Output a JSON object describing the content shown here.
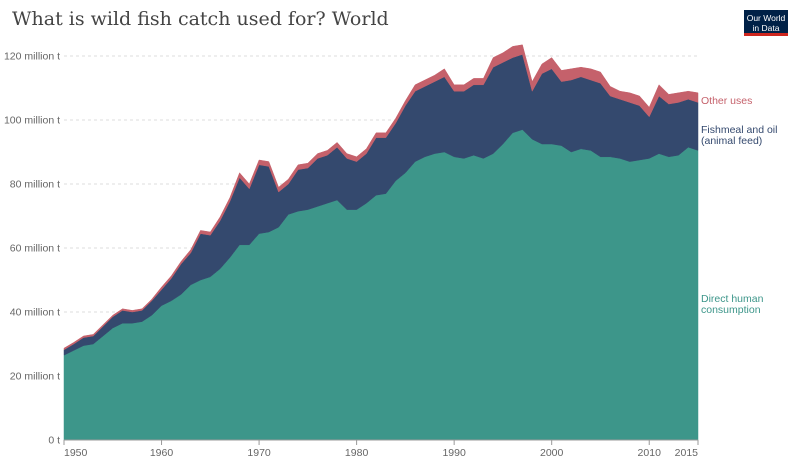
{
  "title": "What is wild fish catch used for? World",
  "logo": {
    "line1": "Our World",
    "line2": "in Data"
  },
  "colors": {
    "direct": "#3d968a",
    "fishmeal": "#34496e",
    "other": "#c5616b",
    "grid": "#dddddd",
    "axis": "#999999"
  },
  "chart_data": {
    "type": "area",
    "stacked": true,
    "title": "What is wild fish catch used for? World",
    "xlabel": "",
    "ylabel": "",
    "xlim": [
      1950,
      2015
    ],
    "ylim": [
      0,
      125
    ],
    "grid": true,
    "y_ticks": [
      0,
      20,
      40,
      60,
      80,
      100,
      120
    ],
    "y_tick_labels": [
      "0 t",
      "20 million t",
      "40 million t",
      "60 million t",
      "80 million t",
      "100 million t",
      "120 million t"
    ],
    "x_ticks": [
      1950,
      1960,
      1970,
      1980,
      1990,
      2000,
      2010,
      2015
    ],
    "x_tick_labels": [
      "1950",
      "1960",
      "1970",
      "1980",
      "1990",
      "2000",
      "2010",
      "2015"
    ],
    "unit": "million t",
    "x": [
      1950,
      1951,
      1952,
      1953,
      1954,
      1955,
      1956,
      1957,
      1958,
      1959,
      1960,
      1961,
      1962,
      1963,
      1964,
      1965,
      1966,
      1967,
      1968,
      1969,
      1970,
      1971,
      1972,
      1973,
      1974,
      1975,
      1976,
      1977,
      1978,
      1979,
      1980,
      1981,
      1982,
      1983,
      1984,
      1985,
      1986,
      1987,
      1988,
      1989,
      1990,
      1991,
      1992,
      1993,
      1994,
      1995,
      1996,
      1997,
      1998,
      1999,
      2000,
      2001,
      2002,
      2003,
      2004,
      2005,
      2006,
      2007,
      2008,
      2009,
      2010,
      2011,
      2012,
      2013,
      2014,
      2015
    ],
    "series": [
      {
        "name": "Direct human consumption",
        "legend": [
          "Direct human",
          "consumption"
        ],
        "values": [
          26.5,
          28,
          29.5,
          30,
          32.5,
          35,
          36.5,
          36.5,
          37,
          39,
          42,
          43.5,
          45.5,
          48.5,
          50,
          51,
          53.5,
          57,
          61,
          61,
          64.5,
          65,
          66.5,
          70.5,
          71.5,
          72,
          73,
          74,
          75,
          72,
          72,
          74,
          76.5,
          77,
          81,
          83.5,
          87,
          88.5,
          89.5,
          90,
          88.5,
          88,
          89,
          88,
          89.5,
          92.5,
          96,
          97,
          94,
          92.5,
          92.5,
          92,
          90,
          91,
          90.5,
          88.5,
          88.5,
          88,
          87,
          87.5,
          88,
          89.5,
          88.5,
          89,
          91.5,
          90.5
        ]
      },
      {
        "name": "Fishmeal and oil (animal feed)",
        "legend": [
          "Fishmeal and oil",
          "(animal feed)"
        ],
        "values": [
          1.7,
          2,
          2.5,
          2.5,
          3,
          3.5,
          4,
          3.5,
          3.5,
          4.5,
          5,
          7,
          9.5,
          10,
          14.5,
          13,
          15,
          17.5,
          21,
          17.5,
          21.5,
          20.5,
          11,
          9.5,
          13,
          13,
          15,
          15,
          16.5,
          16,
          15,
          15.5,
          18,
          17.5,
          18,
          21,
          22,
          22,
          22.5,
          23.5,
          20.5,
          21,
          22,
          23,
          27,
          25.5,
          23.5,
          23.5,
          15,
          22,
          23.5,
          20,
          22.5,
          22.5,
          22,
          23,
          19,
          18.5,
          18.5,
          17,
          13,
          18,
          16.5,
          16.5,
          15,
          15
        ]
      },
      {
        "name": "Other uses",
        "legend": [
          "Other uses"
        ],
        "values": [
          0.5,
          0.5,
          0.5,
          0.5,
          0.5,
          0.5,
          0.5,
          0.5,
          0.5,
          0.5,
          0.8,
          0.8,
          0.8,
          1,
          1,
          1,
          1.2,
          1.2,
          1.5,
          1.5,
          1.5,
          1.5,
          1.5,
          1.5,
          1.5,
          1.5,
          1.5,
          1.5,
          1.5,
          1.5,
          1.5,
          1.5,
          1.5,
          1.5,
          1.5,
          1.5,
          2,
          2,
          2,
          2.5,
          2,
          2,
          2,
          2,
          3,
          3,
          3.5,
          3,
          3,
          3,
          3.5,
          3.5,
          3.5,
          3,
          3.5,
          3.5,
          3,
          2.5,
          3,
          3,
          3,
          3.5,
          3,
          3,
          2.5,
          3
        ]
      }
    ]
  }
}
